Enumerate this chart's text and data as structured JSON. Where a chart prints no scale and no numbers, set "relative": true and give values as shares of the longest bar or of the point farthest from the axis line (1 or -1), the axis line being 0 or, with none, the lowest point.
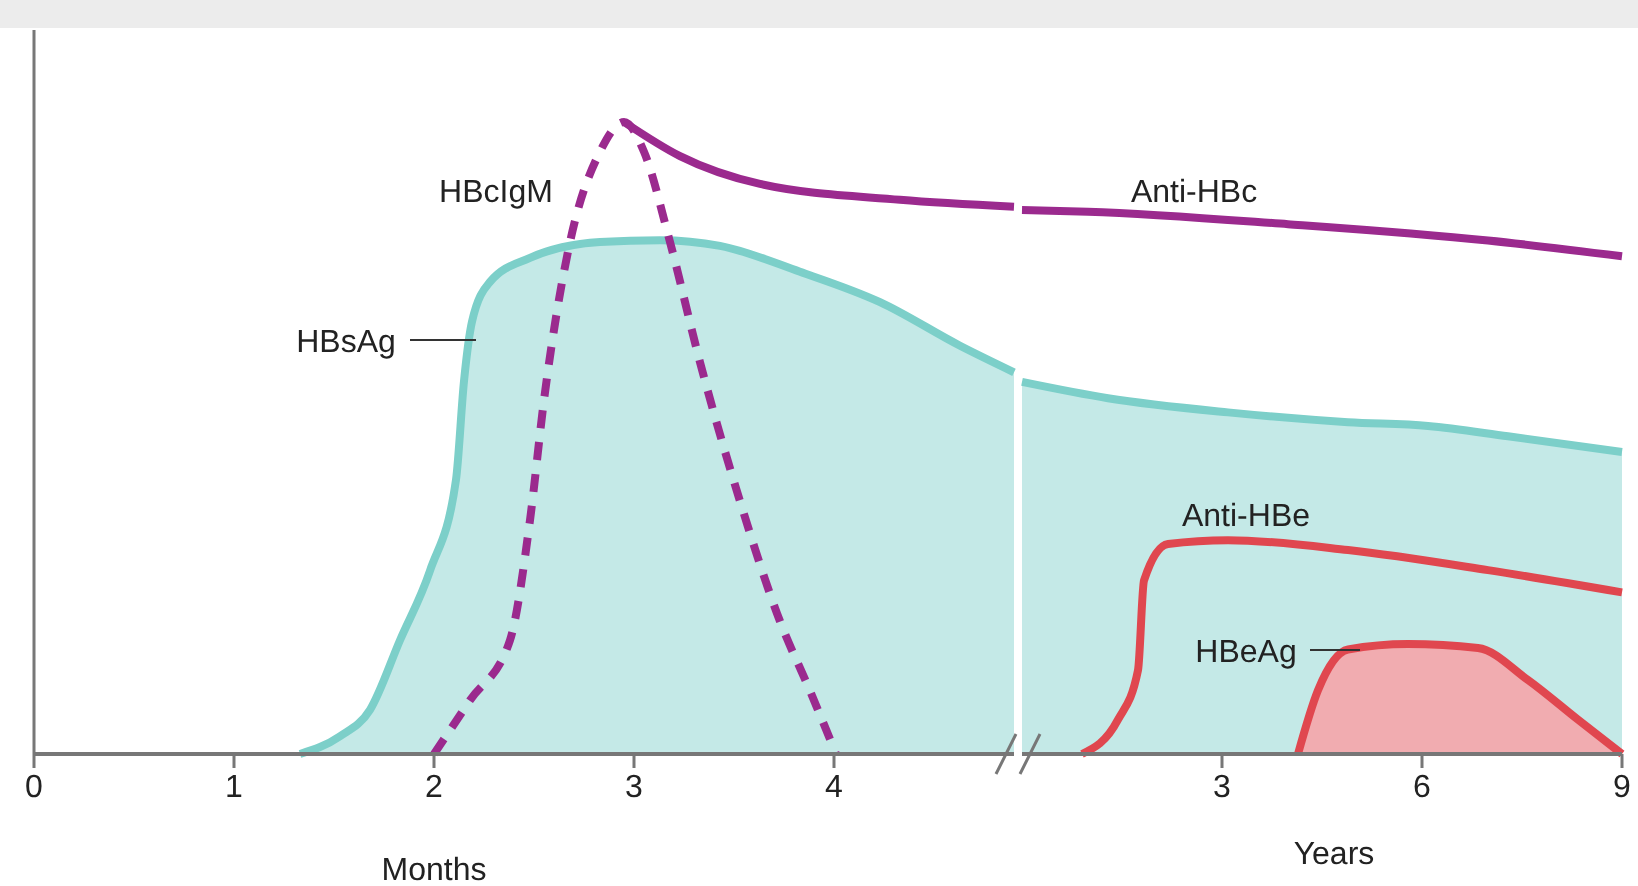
{
  "chart_data": [
    {
      "type": "line",
      "relative": true,
      "xlabel": "Months",
      "xlim": [
        0,
        4.9
      ],
      "xticks": [
        0,
        1,
        2,
        3,
        4
      ],
      "series": [
        {
          "name": "HBsAg",
          "type": "area",
          "color": "#7ccfc9",
          "x": [
            1.33,
            1.53,
            1.68,
            1.83,
            1.98,
            2.11,
            2.15,
            2.19,
            2.28,
            2.48,
            2.83,
            3.13,
            3.43,
            3.83,
            4.23,
            4.63,
            4.9
          ],
          "values": [
            0,
            0.028,
            0.07,
            0.18,
            0.29,
            0.434,
            0.59,
            0.684,
            0.747,
            0.785,
            0.81,
            0.813,
            0.804,
            0.763,
            0.715,
            0.646,
            0.604
          ]
        },
        {
          "name": "HBcIgM",
          "line_style": "dashed",
          "color": "#9b2a8e",
          "x": [
            2.0,
            2.18,
            2.38,
            2.48,
            2.55,
            2.68,
            2.83,
            2.95,
            3.05,
            3.18,
            3.33,
            3.53,
            3.73,
            3.88,
            4.01
          ],
          "values": [
            0,
            0.085,
            0.18,
            0.37,
            0.56,
            0.81,
            0.953,
            1.0,
            0.953,
            0.81,
            0.62,
            0.4,
            0.21,
            0.1,
            0
          ]
        },
        {
          "color": "#9b2a8e",
          "x": [
            2.95,
            3.23,
            3.63,
            4.33,
            4.9
          ],
          "values": [
            1.0,
            0.946,
            0.902,
            0.877,
            0.866
          ]
        }
      ]
    },
    {
      "type": "line",
      "relative": true,
      "xlabel": "Years",
      "xlim": [
        0,
        9
      ],
      "xticks": [
        3,
        6,
        9
      ],
      "series": [
        {
          "type": "area",
          "color": "#7ccfc9",
          "x": [
            0,
            1.29,
            3.09,
            4.89,
            6.09,
            7.29,
            9
          ],
          "values": [
            0.684,
            0.654,
            0.628,
            0.61,
            0.603,
            0.584,
            0.555
          ]
        },
        {
          "name": "Anti-HBc",
          "color": "#9b2a8e",
          "x": [
            0,
            0.99,
            3.99,
            6.99,
            9
          ],
          "values": [
            1,
            0.997,
            0.974,
            0.944,
            0.915
          ]
        },
        {
          "name": "Anti-HBe",
          "color": "#e0474f",
          "x": [
            0.9,
            1.44,
            1.74,
            1.83,
            2.19,
            3.09,
            4.89,
            6.99,
            9
          ],
          "values": [
            0,
            0.063,
            0.154,
            0.319,
            0.386,
            0.393,
            0.375,
            0.338,
            0.297
          ]
        },
        {
          "name": "HBeAg",
          "type": "area",
          "color": "#e0474f",
          "x": [
            4.14,
            4.44,
            4.89,
            5.79,
            6.84,
            7.59,
            8.34,
            9
          ],
          "values": [
            0,
            0.117,
            0.192,
            0.202,
            0.195,
            0.136,
            0.063,
            0
          ]
        }
      ]
    }
  ]
}
